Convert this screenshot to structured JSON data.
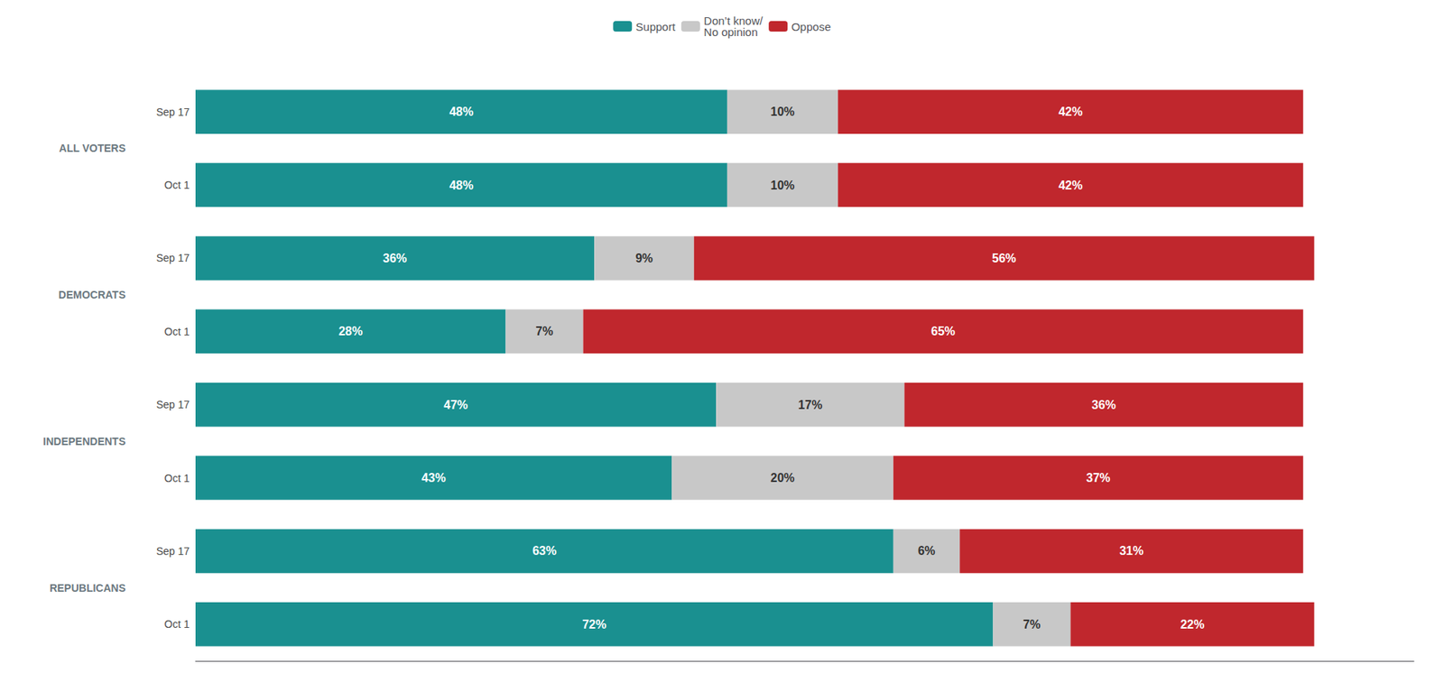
{
  "chart_data": {
    "type": "bar",
    "orientation": "horizontal",
    "stacked": true,
    "data_labels": true,
    "tick_labels": "y",
    "grid": false,
    "legend": "top",
    "xlim": [
      0,
      110
    ],
    "groups": [
      {
        "label": "ALL VOTERS",
        "categories": [
          "Sep 17",
          "Oct 1"
        ]
      },
      {
        "label": "DEMOCRATS",
        "categories": [
          "Sep 17",
          "Oct 1"
        ]
      },
      {
        "label": "INDEPENDENTS",
        "categories": [
          "Sep 17",
          "Oct 1"
        ]
      },
      {
        "label": "REPUBLICANS",
        "categories": [
          "Sep 17",
          "Oct 1"
        ]
      }
    ],
    "series": [
      {
        "name": "Support",
        "color": "#1a9090",
        "values": [
          48,
          48,
          36,
          28,
          47,
          43,
          63,
          72
        ],
        "value_labels": [
          "48%",
          "48%",
          "36%",
          "28%",
          "47%",
          "43%",
          "63%",
          "72%"
        ]
      },
      {
        "name": "Don’t know/\nNo opinion",
        "color": "#c8c8c8",
        "values": [
          10,
          10,
          9,
          7,
          17,
          20,
          6,
          7
        ],
        "value_labels": [
          "10%",
          "10%",
          "9%",
          "7%",
          "17%",
          "20%",
          "6%",
          "7%"
        ]
      },
      {
        "name": "Oppose",
        "color": "#c0272d",
        "values": [
          42,
          42,
          56,
          65,
          36,
          37,
          31,
          22
        ],
        "value_labels": [
          "42%",
          "42%",
          "56%",
          "65%",
          "36%",
          "37%",
          "31%",
          "22%"
        ]
      }
    ]
  }
}
